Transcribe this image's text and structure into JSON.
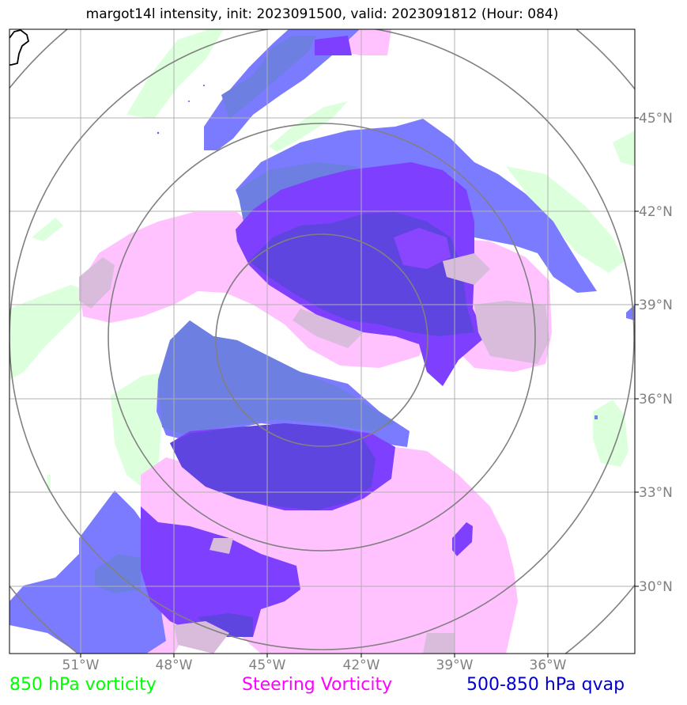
{
  "title": "margot14l intensity, init: 2023091500, valid: 2023091812 (Hour: 084)",
  "lon_labels": [
    "51°W",
    "48°W",
    "45°W",
    "42°W",
    "39°W",
    "36°W"
  ],
  "lat_labels": [
    "45°N",
    "42°N",
    "39°N",
    "36°N",
    "33°N",
    "30°N"
  ],
  "legend": {
    "green": "850 hPa vorticity",
    "pink": "Steering Vorticity",
    "blue": "500-850 hPa qvap"
  },
  "colors": {
    "green_fill": "#dcffdc",
    "pink_fill": "#ffc2ff",
    "blue_fill": "#7b7bff",
    "violet_fill": "#7f3fff",
    "overlap_fill": "#5e45e0",
    "grid": "#b0b0b0",
    "rings": "#808080",
    "coast": "#000000"
  }
}
